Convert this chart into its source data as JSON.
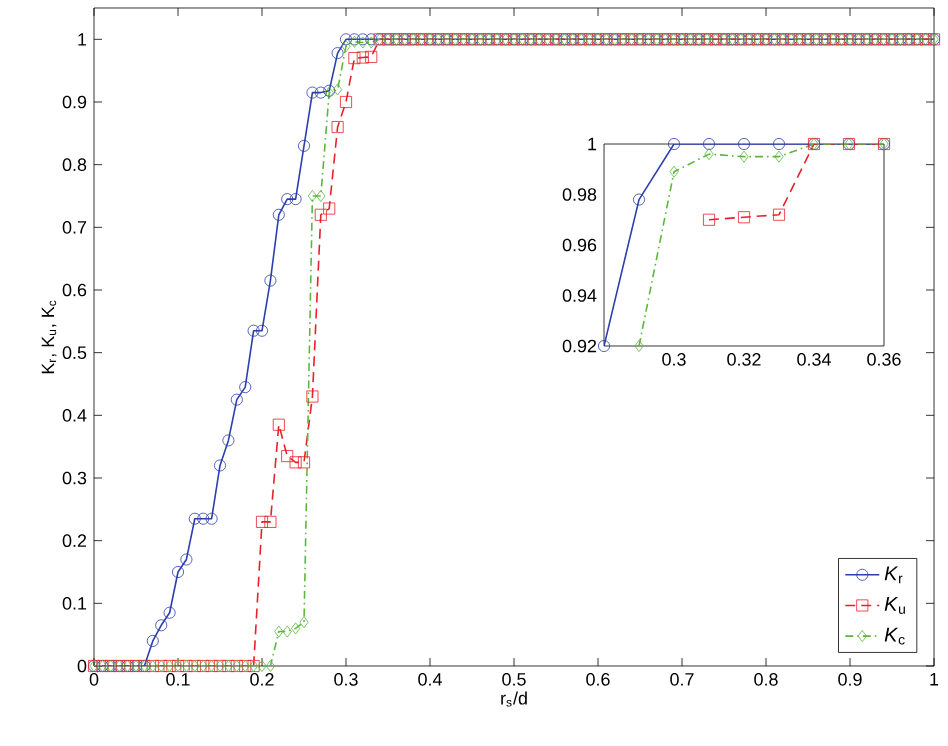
{
  "chart_data": [
    {
      "type": "line",
      "xlabel": "r$_{s}$/d",
      "ylabel": "K$_{r}$, K$_{u}$, K$_{c}$",
      "x": [
        0,
        0.01,
        0.02,
        0.03,
        0.04,
        0.05,
        0.06,
        0.07,
        0.08,
        0.09,
        0.1,
        0.11,
        0.12,
        0.13,
        0.14,
        0.15,
        0.16,
        0.17,
        0.18,
        0.19,
        0.2,
        0.21,
        0.22,
        0.23,
        0.24,
        0.25,
        0.26,
        0.27,
        0.28,
        0.29,
        0.3,
        0.31,
        0.32,
        0.33,
        0.34,
        0.35,
        0.36,
        0.37,
        0.38,
        0.39,
        0.4,
        0.41,
        0.42,
        0.43,
        0.44,
        0.45,
        0.46,
        0.47,
        0.48,
        0.49,
        0.5,
        0.51,
        0.52,
        0.53,
        0.54,
        0.55,
        0.56,
        0.57,
        0.58,
        0.59,
        0.6,
        0.61,
        0.62,
        0.63,
        0.64,
        0.65,
        0.66,
        0.67,
        0.68,
        0.69,
        0.7,
        0.71,
        0.72,
        0.73,
        0.74,
        0.75,
        0.76,
        0.77,
        0.78,
        0.79,
        0.8,
        0.81,
        0.82,
        0.83,
        0.84,
        0.85,
        0.86,
        0.87,
        0.88,
        0.89,
        0.9,
        0.91,
        0.92,
        0.93,
        0.94,
        0.95,
        0.96,
        0.97,
        0.98,
        0.99,
        1
      ],
      "series": [
        {
          "name": "*K*$_{r}$",
          "color": "#2b3fae",
          "marker": "circle",
          "line_style": "solid",
          "values": [
            0,
            0,
            0,
            0,
            0,
            0,
            0,
            0.04,
            0.065,
            0.085,
            0.15,
            0.17,
            0.235,
            0.235,
            0.235,
            0.32,
            0.36,
            0.425,
            0.445,
            0.535,
            0.535,
            0.615,
            0.72,
            0.745,
            0.745,
            0.83,
            0.915,
            0.915,
            0.918,
            0.978,
            1,
            1,
            1,
            1,
            1,
            1,
            1,
            1,
            1,
            1,
            1,
            1,
            1,
            1,
            1,
            1,
            1,
            1,
            1,
            1,
            1,
            1,
            1,
            1,
            1,
            1,
            1,
            1,
            1,
            1,
            1,
            1,
            1,
            1,
            1,
            1,
            1,
            1,
            1,
            1,
            1,
            1,
            1,
            1,
            1,
            1,
            1,
            1,
            1,
            1,
            1,
            1,
            1,
            1,
            1,
            1,
            1,
            1,
            1,
            1,
            1,
            1,
            1,
            1,
            1,
            1,
            1,
            1,
            1,
            1,
            1
          ]
        },
        {
          "name": "*K*$_{u}$",
          "color": "#e8202a",
          "marker": "square",
          "line_style": "dashed",
          "values": [
            0,
            0,
            0,
            0,
            0,
            0,
            0,
            0,
            0,
            0,
            0,
            0,
            0,
            0,
            0,
            0,
            0,
            0,
            0,
            0,
            0.23,
            0.23,
            0.385,
            0.335,
            0.325,
            0.325,
            0.43,
            0.72,
            0.73,
            0.86,
            0.9,
            0.97,
            0.971,
            0.972,
            1,
            1,
            1,
            1,
            1,
            1,
            1,
            1,
            1,
            1,
            1,
            1,
            1,
            1,
            1,
            1,
            1,
            1,
            1,
            1,
            1,
            1,
            1,
            1,
            1,
            1,
            1,
            1,
            1,
            1,
            1,
            1,
            1,
            1,
            1,
            1,
            1,
            1,
            1,
            1,
            1,
            1,
            1,
            1,
            1,
            1,
            1,
            1,
            1,
            1,
            1,
            1,
            1,
            1,
            1,
            1,
            1,
            1,
            1,
            1,
            1,
            1,
            1,
            1,
            1,
            1,
            1
          ]
        },
        {
          "name": "*K*$_{c}$",
          "color": "#5cb83c",
          "marker": "diamond",
          "line_style": "dotted",
          "values": [
            0,
            0,
            0,
            0,
            0,
            0,
            0,
            0,
            0,
            0,
            0,
            0,
            0,
            0,
            0,
            0,
            0,
            0,
            0,
            0,
            0,
            0,
            0.055,
            0.055,
            0.06,
            0.07,
            0.75,
            0.75,
            0.915,
            0.92,
            0.989,
            0.996,
            0.995,
            0.995,
            1,
            1,
            1,
            1,
            1,
            1,
            1,
            1,
            1,
            1,
            1,
            1,
            1,
            1,
            1,
            1,
            1,
            1,
            1,
            1,
            1,
            1,
            1,
            1,
            1,
            1,
            1,
            1,
            1,
            1,
            1,
            1,
            1,
            1,
            1,
            1,
            1,
            1,
            1,
            1,
            1,
            1,
            1,
            1,
            1,
            1,
            1,
            1,
            1,
            1,
            1,
            1,
            1,
            1,
            1,
            1,
            1,
            1,
            1,
            1,
            1,
            1,
            1,
            1,
            1,
            1,
            1
          ]
        }
      ],
      "xlim": [
        0,
        1
      ],
      "ylim": [
        0,
        1.05
      ],
      "xticks": [
        0,
        0.1,
        0.2,
        0.3,
        0.4,
        0.5,
        0.6,
        0.7,
        0.8,
        0.9,
        1
      ],
      "yticks": [
        0,
        0.1,
        0.2,
        0.3,
        0.4,
        0.5,
        0.6,
        0.7,
        0.8,
        0.9,
        1
      ],
      "legend": "bottom right",
      "grid": false
    },
    {
      "type": "line",
      "x": [
        0.28,
        0.29,
        0.3,
        0.31,
        0.32,
        0.33,
        0.34,
        0.35,
        0.36
      ],
      "series": [
        {
          "color": "#2b3fae",
          "marker": "circle",
          "line_style": "solid",
          "values": [
            0.92,
            0.978,
            1,
            1,
            1,
            1,
            1,
            1,
            1
          ]
        },
        {
          "color": "#e8202a",
          "marker": "square",
          "line_style": "dashed",
          "values": [
            null,
            null,
            null,
            0.97,
            0.971,
            0.972,
            1,
            1,
            1
          ]
        },
        {
          "color": "#5cb83c",
          "marker": "diamond",
          "line_style": "dotted",
          "values": [
            null,
            0.92,
            0.989,
            0.996,
            0.995,
            0.995,
            1,
            1,
            1
          ]
        }
      ],
      "xlim": [
        0.28,
        0.36
      ],
      "ylim": [
        0.92,
        1
      ],
      "xticks": [
        0.3,
        0.32,
        0.34,
        0.36
      ],
      "yticks": [
        0.92,
        0.94,
        0.96,
        0.98,
        1
      ],
      "legend": false,
      "grid": false
    }
  ]
}
